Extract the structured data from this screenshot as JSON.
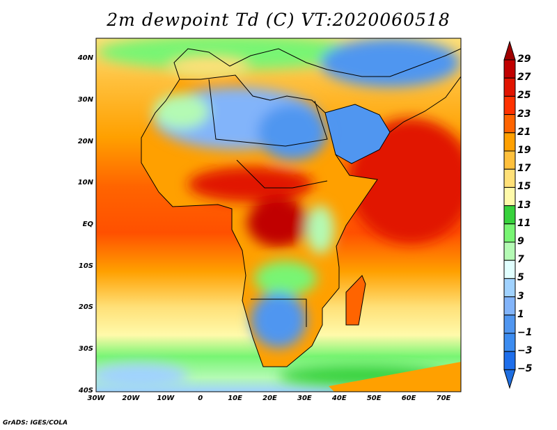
{
  "title": "2m dewpoint Td (C) VT:2020060518",
  "credit": "GrADS: IGES/COLA",
  "lat_labels": [
    "40N",
    "30N",
    "20N",
    "10N",
    "EQ",
    "10S",
    "20S",
    "30S",
    "40S"
  ],
  "lon_labels": [
    "30W",
    "20W",
    "10W",
    "0",
    "10E",
    "20E",
    "30E",
    "40E",
    "50E",
    "60E",
    "70E"
  ],
  "colorbar": {
    "labels": [
      "29",
      "27",
      "25",
      "23",
      "21",
      "19",
      "17",
      "15",
      "13",
      "11",
      "9",
      "7",
      "5",
      "3",
      "1",
      "−1",
      "−3",
      "−5"
    ],
    "colors": [
      "#a00000",
      "#c00000",
      "#e11400",
      "#ff3200",
      "#ff6400",
      "#ffa000",
      "#ffc03c",
      "#ffe078",
      "#fffaaa",
      "#37d23c",
      "#78f573",
      "#b4fab4",
      "#e1ffff",
      "#a0d2ff",
      "#82b4fa",
      "#5096f0",
      "#3c8cf0",
      "#1e6eeb",
      "#1e6ee0"
    ]
  }
}
